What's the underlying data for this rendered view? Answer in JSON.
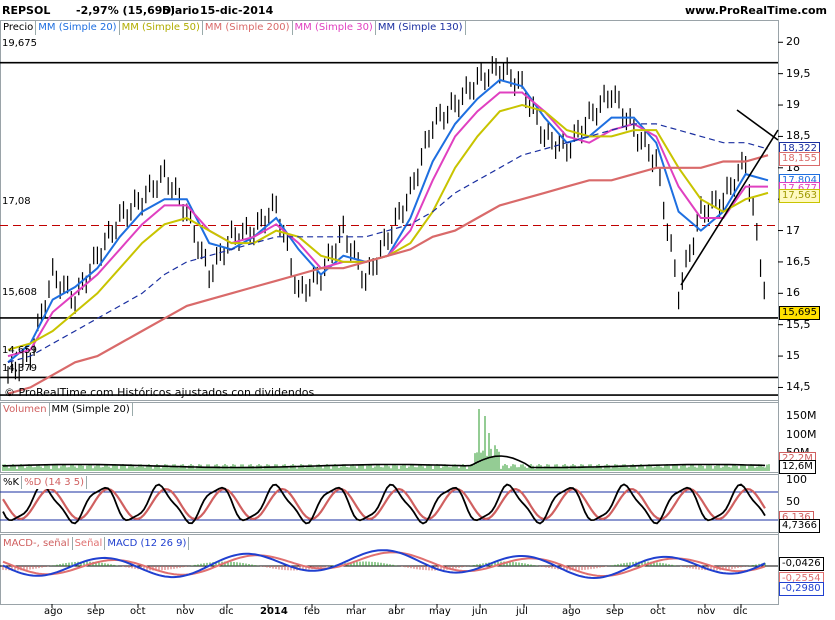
{
  "header": {
    "symbol": "REPSOL",
    "change": "-2,97% (15,695)",
    "period": "Diario",
    "date": "15-dic-2014",
    "site": "www.ProRealTime.com"
  },
  "legend": {
    "price": "Precio",
    "ma20": "MM (Simple 20)",
    "ma50": "MM (Simple 50)",
    "ma200": "MM (Simple 200)",
    "ma30": "MM (Simple 30)",
    "ma130": "MM (Simple 130)"
  },
  "colors": {
    "ma20": "#1e6fe0",
    "ma50": "#c8c400",
    "ma200": "#d96a6a",
    "ma30": "#e040c0",
    "ma130": "#1a2fa0",
    "volume": "#2a9a2a",
    "stoch_k": "#000000",
    "stoch_d": "#d06060",
    "macd_line": "#2040d0",
    "macd_signal": "#e07070"
  },
  "footer_note": "© ProRealTime.com  Históricos ajustados con dividendos",
  "price_levels": [
    {
      "label": "19,675",
      "value": 19.675
    },
    {
      "label": "17,08",
      "value": 17.08
    },
    {
      "label": "15,608",
      "value": 15.608
    },
    {
      "label": "14,659",
      "value": 14.659
    },
    {
      "label": "14,379",
      "value": 14.379
    }
  ],
  "price_axis": [
    "20",
    "19,5",
    "19",
    "18,5",
    "18",
    "17,5",
    "17",
    "16,5",
    "16",
    "15,5",
    "15",
    "14,5"
  ],
  "price_tags": [
    {
      "label": "18,322",
      "value": 18.322,
      "bg": "#ffffff",
      "fg": "#1a2fa0",
      "border": "#1a2fa0"
    },
    {
      "label": "18,155",
      "value": 18.155,
      "bg": "#ffffff",
      "fg": "#d96a6a",
      "border": "#d96a6a"
    },
    {
      "label": "17,804",
      "value": 17.804,
      "bg": "#ffffff",
      "fg": "#1e6fe0",
      "border": "#1e6fe0"
    },
    {
      "label": "17,677",
      "value": 17.677,
      "bg": "#ffffff",
      "fg": "#e040c0",
      "border": "#e040c0"
    },
    {
      "label": "17,563",
      "value": 17.563,
      "bg": "#fff9c0",
      "fg": "#a09a00",
      "border": "#c8c400"
    },
    {
      "label": "15,695",
      "value": 15.695,
      "bg": "#ffe000",
      "fg": "#000000",
      "border": "#000000"
    }
  ],
  "volume_panel": {
    "legend": [
      "Volumen",
      "MM (Simple 20)"
    ],
    "axis": [
      "150M",
      "100M",
      "50M"
    ],
    "tags": [
      "22,2M",
      "12,6M"
    ]
  },
  "stoch_panel": {
    "legend": [
      "%K",
      "%D (14 3 5)"
    ],
    "axis": [
      "100",
      "50"
    ],
    "tags": [
      "6,136",
      "4,7366"
    ]
  },
  "macd_panel": {
    "legend": [
      "MACD-, señal",
      "Señal",
      "MACD (12 26 9)"
    ],
    "tags": [
      "-0,0426",
      "-0,2554",
      "-0,2980"
    ]
  },
  "x_labels": [
    "ago",
    "sep",
    "oct",
    "nov",
    "dic",
    "2014",
    "feb",
    "mar",
    "abr",
    "may",
    "jun",
    "jul",
    "ago",
    "sep",
    "oct",
    "nov",
    "dic"
  ],
  "chart_data": {
    "type": "line",
    "title": "REPSOL -2,97% (15,695) Diario 15-dic-2014",
    "ylim": [
      14.3,
      20.1
    ],
    "series": [
      {
        "name": "Precio",
        "x": [
          "2013-07-15",
          "2013-08-01",
          "2013-08-15",
          "2013-09-01",
          "2013-09-15",
          "2013-10-01",
          "2013-10-15",
          "2013-11-01",
          "2013-11-15",
          "2013-12-01",
          "2013-12-15",
          "2014-01-01",
          "2014-01-15",
          "2014-02-01",
          "2014-02-15",
          "2014-03-01",
          "2014-03-15",
          "2014-04-01",
          "2014-04-15",
          "2014-05-01",
          "2014-05-15",
          "2014-06-01",
          "2014-06-15",
          "2014-07-01",
          "2014-07-15",
          "2014-08-01",
          "2014-08-15",
          "2014-09-01",
          "2014-09-15",
          "2014-10-01",
          "2014-10-15",
          "2014-11-01",
          "2014-11-15",
          "2014-12-01",
          "2014-12-15"
        ],
        "values": [
          14.7,
          15.0,
          16.3,
          15.9,
          16.6,
          17.2,
          17.5,
          17.9,
          17.3,
          16.3,
          16.9,
          17.0,
          17.4,
          16.0,
          16.3,
          17.0,
          16.2,
          16.9,
          17.6,
          18.7,
          19.0,
          19.4,
          19.6,
          19.3,
          18.5,
          18.3,
          18.8,
          19.2,
          18.6,
          18.1,
          16.0,
          17.3,
          17.5,
          18.1,
          15.7
        ]
      },
      {
        "name": "MM (Simple 20)",
        "values": [
          14.9,
          15.2,
          15.9,
          16.1,
          16.4,
          16.9,
          17.3,
          17.5,
          17.5,
          16.8,
          16.7,
          16.9,
          17.2,
          16.7,
          16.3,
          16.6,
          16.5,
          16.6,
          17.2,
          18.1,
          18.7,
          19.1,
          19.4,
          19.3,
          18.8,
          18.4,
          18.5,
          18.8,
          18.8,
          18.4,
          17.3,
          17.0,
          17.3,
          17.9,
          17.8
        ]
      },
      {
        "name": "MM (Simple 30)",
        "values": [
          15.0,
          15.1,
          15.7,
          16.0,
          16.3,
          16.7,
          17.1,
          17.4,
          17.4,
          17.0,
          16.8,
          16.9,
          17.1,
          16.8,
          16.4,
          16.5,
          16.5,
          16.6,
          17.0,
          17.8,
          18.5,
          18.9,
          19.2,
          19.2,
          18.9,
          18.5,
          18.4,
          18.6,
          18.7,
          18.5,
          17.7,
          17.2,
          17.2,
          17.7,
          17.7
        ]
      },
      {
        "name": "MM (Simple 50)",
        "values": [
          15.1,
          15.2,
          15.4,
          15.7,
          16.0,
          16.4,
          16.8,
          17.1,
          17.2,
          17.0,
          16.8,
          16.8,
          17.0,
          16.9,
          16.6,
          16.5,
          16.5,
          16.6,
          16.8,
          17.3,
          18.0,
          18.5,
          18.9,
          19.0,
          18.9,
          18.6,
          18.5,
          18.5,
          18.6,
          18.6,
          18.0,
          17.5,
          17.3,
          17.5,
          17.6
        ]
      },
      {
        "name": "MM (Simple 130)",
        "values": [
          14.9,
          15.0,
          15.2,
          15.4,
          15.6,
          15.8,
          16.0,
          16.3,
          16.5,
          16.6,
          16.7,
          16.8,
          16.9,
          16.9,
          16.9,
          16.9,
          16.9,
          17.0,
          17.1,
          17.3,
          17.6,
          17.8,
          18.0,
          18.2,
          18.3,
          18.4,
          18.5,
          18.6,
          18.7,
          18.7,
          18.6,
          18.5,
          18.4,
          18.4,
          18.3
        ]
      },
      {
        "name": "MM (Simple 200)",
        "values": [
          14.4,
          14.5,
          14.7,
          14.9,
          15.0,
          15.2,
          15.4,
          15.6,
          15.8,
          15.9,
          16.0,
          16.1,
          16.2,
          16.3,
          16.4,
          16.4,
          16.5,
          16.6,
          16.7,
          16.9,
          17.0,
          17.2,
          17.4,
          17.5,
          17.6,
          17.7,
          17.8,
          17.8,
          17.9,
          18.0,
          18.0,
          18.0,
          18.1,
          18.1,
          18.2
        ]
      }
    ]
  }
}
